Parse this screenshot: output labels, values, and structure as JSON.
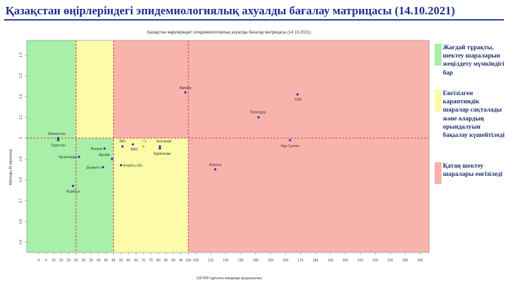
{
  "page_title": "Қазақстан өңірлеріндегі эпидемиологиялық ахуалды бағалау матрицасы  (14.10.2021)",
  "chart_data": {
    "type": "scatter",
    "title": "Қазақстан өңірлеріндегі эпидемиологиялық ахуалды бағалау матрицасы  (14.10.2021)",
    "xlabel": "100 000 тұрғынға шаққанда ауырушылық",
    "ylabel": "Көбеюдің Rt көрсеткіші",
    "xlim": [
      -8,
      261
    ],
    "ylim": [
      0.45,
      1.47
    ],
    "xticks": [
      0,
      5,
      10,
      15,
      20,
      25,
      30,
      35,
      40,
      45,
      50,
      55,
      60,
      65,
      70,
      75,
      80,
      85,
      90,
      95,
      100,
      105,
      115,
      125,
      135,
      145,
      155,
      165,
      175,
      185,
      195,
      205,
      215,
      225,
      235,
      245,
      255
    ],
    "yticks": [
      0.5,
      0.6,
      0.7,
      0.8,
      0.9,
      1.0,
      1.1,
      1.2,
      1.3,
      1.4
    ],
    "ytick_labels": [
      "0.5",
      "0.6",
      "0.7",
      "0.8",
      "0.9",
      "1",
      "1.1",
      "1.2",
      "1.3",
      "1.4"
    ],
    "thresholds": {
      "x": [
        25,
        50,
        100
      ],
      "y": 1.0
    },
    "zones": [
      {
        "x": [
          -8,
          50
        ],
        "y": [
          0.45,
          1.0
        ],
        "color": "#a8efa8"
      },
      {
        "x": [
          -8,
          25
        ],
        "y": [
          1.0,
          1.47
        ],
        "color": "#a8efa8"
      },
      {
        "x": [
          25,
          50
        ],
        "y": [
          1.0,
          1.47
        ],
        "color": "#fbfba8"
      },
      {
        "x": [
          50,
          100
        ],
        "y": [
          0.45,
          1.0
        ],
        "color": "#fbfba8"
      },
      {
        "x": [
          50,
          261
        ],
        "y": [
          1.0,
          1.47
        ],
        "color": "#f9b3ad"
      },
      {
        "x": [
          100,
          261
        ],
        "y": [
          0.45,
          1.0
        ],
        "color": "#f9b3ad"
      }
    ],
    "points": [
      {
        "label": "Маңғыстау",
        "x": 13,
        "y": 1.0,
        "color": "#2b2bb0",
        "label_dx": -2,
        "label_dy": -5,
        "anchor": "middle",
        "label_color": "#333333"
      },
      {
        "label": "Түркістан",
        "x": 13,
        "y": 0.99,
        "color": "#2b2bb0",
        "label_dx": 0,
        "label_dy": 9,
        "anchor": "middle",
        "label_color": "#333333"
      },
      {
        "label": "Атырау",
        "x": 44,
        "y": 0.95,
        "color": "#2b2bb0",
        "label_dx": -3,
        "label_dy": 2,
        "anchor": "end",
        "label_color": "#333333"
      },
      {
        "label": "Қызылорда",
        "x": 27,
        "y": 0.91,
        "color": "#2b2bb0",
        "label_dx": -3,
        "label_dy": 2,
        "anchor": "end",
        "label_color": "#333333"
      },
      {
        "label": "Ақтөбе",
        "x": 49,
        "y": 0.9,
        "color": "#2b2bb0",
        "label_dx": -3,
        "label_dy": -4,
        "anchor": "end",
        "label_color": "#333333"
      },
      {
        "label": "Шымкент",
        "x": 43,
        "y": 0.86,
        "color": "#2b2bb0",
        "label_dx": -3,
        "label_dy": 2,
        "anchor": "end",
        "label_color": "#333333"
      },
      {
        "label": "Жамбыл",
        "x": 23,
        "y": 0.77,
        "color": "#2b2bb0",
        "label_dx": 0,
        "label_dy": 10,
        "anchor": "middle",
        "label_color": "#333333"
      },
      {
        "label": "ЗКО",
        "x": 56,
        "y": 0.96,
        "color": "#2b2bb0",
        "label_dx": -5,
        "label_dy": -6,
        "anchor": "start",
        "label_color": "#333333"
      },
      {
        "label": "ВКО",
        "x": 63,
        "y": 0.97,
        "color": "#2b2bb0",
        "label_dx": -3,
        "label_dy": 9,
        "anchor": "start",
        "label_color": "#333333"
      },
      {
        "label": "Алматы обл.",
        "x": 55,
        "y": 0.87,
        "color": "#2b2bb0",
        "label_dx": 3,
        "label_dy": 2,
        "anchor": "start",
        "label_color": "#333333"
      },
      {
        "label": "Қостанай",
        "x": 81,
        "y": 0.96,
        "color": "#2b2bb0",
        "label_dx": -5,
        "label_dy": -6,
        "anchor": "start",
        "label_color": "#333333"
      },
      {
        "label": "Қарағанды",
        "x": 81,
        "y": 0.95,
        "color": "#2b2bb0",
        "label_dx": -9,
        "label_dy": 9,
        "anchor": "start",
        "label_color": "#333333"
      },
      {
        "label": "СҚ",
        "x": 70,
        "y": 0.96,
        "color": "#e6a100",
        "label_dx": -2,
        "label_dy": -6,
        "anchor": "start",
        "label_color": "#c98a00"
      },
      {
        "label": "Ақмола",
        "x": 98,
        "y": 1.22,
        "color": "#2b2bb0",
        "label_dx": 0,
        "label_dy": -5,
        "anchor": "middle",
        "label_color": "#333333"
      },
      {
        "label": "Павлодар",
        "x": 147,
        "y": 1.1,
        "color": "#2b2bb0",
        "label_dx": -1,
        "label_dy": -6,
        "anchor": "middle",
        "label_color": "#333333"
      },
      {
        "label": "СҚО",
        "x": 173,
        "y": 1.21,
        "color": "#2b2bb0",
        "label_dx": 1,
        "label_dy": 9,
        "anchor": "middle",
        "label_color": "#333333"
      },
      {
        "label": "Нұр-Сұлтан",
        "x": 168,
        "y": 0.99,
        "color": "#2b2bb0",
        "label_dx": 0,
        "label_dy": 10,
        "anchor": "middle",
        "label_color": "#333333"
      },
      {
        "label": "Алматы",
        "x": 118,
        "y": 0.85,
        "color": "#2b2bb0",
        "label_dx": 0,
        "label_dy": -5,
        "anchor": "middle",
        "label_color": "#333333"
      }
    ]
  },
  "legend": [
    {
      "text": "Жағдай тұрақты, шектеу шараларын жеңілдету мүмкіндігі бар",
      "color": "#a8efa8"
    },
    {
      "text": "Енгізілген карантиндік шаралар сақталады және олардың орындалуын бақылау күшейтіледі",
      "color": "#fbfba8"
    },
    {
      "text": "Қатаң шектеу шаралары енгізіледі",
      "color": "#f9b3ad"
    }
  ]
}
